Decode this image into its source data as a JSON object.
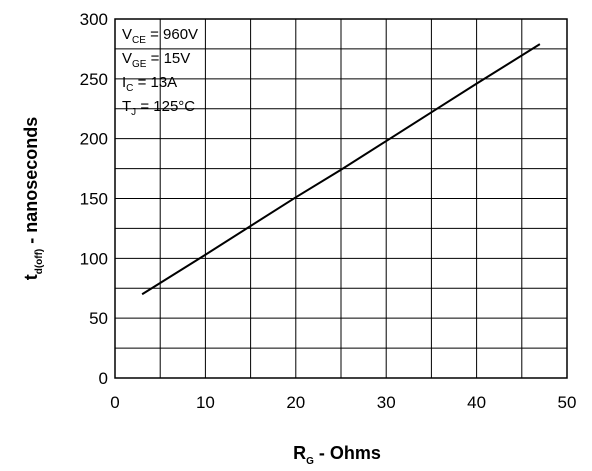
{
  "chart_data": {
    "type": "line",
    "title": "",
    "xlabel": {
      "main": "R",
      "sub": "G",
      "rest": " - Ohms"
    },
    "ylabel": {
      "main": "t",
      "sub": "d(off)",
      "rest": " - nanoseconds"
    },
    "xlim": [
      0,
      50
    ],
    "ylim": [
      0,
      300
    ],
    "x_ticks": [
      0,
      10,
      20,
      30,
      40,
      50
    ],
    "y_ticks": [
      0,
      50,
      100,
      150,
      200,
      250,
      300
    ],
    "x_grid": [
      0,
      5,
      10,
      15,
      20,
      25,
      30,
      35,
      40,
      45,
      50
    ],
    "y_grid": [
      0,
      25,
      50,
      75,
      100,
      125,
      150,
      175,
      200,
      225,
      250,
      275,
      300
    ],
    "grid": true,
    "series": [
      {
        "x": [
          3,
          10,
          20,
          25,
          30,
          35,
          40,
          47
        ],
        "y": [
          70,
          103,
          151,
          174,
          198,
          222,
          246,
          279
        ]
      }
    ],
    "annotations": [
      {
        "main": "V",
        "sub": "CE",
        "rest": " = 960V"
      },
      {
        "main": "V",
        "sub": "GE",
        "rest": " = 15V"
      },
      {
        "main": "I",
        "sub": "C",
        "rest": " =   13A"
      },
      {
        "main": "T",
        "sub": "J",
        "rest": " = 125°C"
      }
    ],
    "line_color": "#000000"
  }
}
